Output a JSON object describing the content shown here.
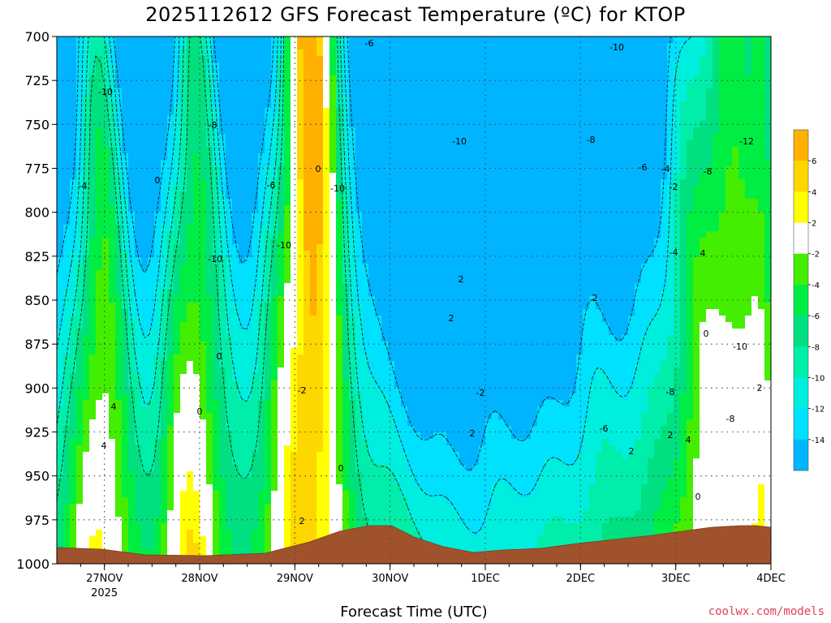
{
  "chart_data": {
    "type": "heatmap",
    "title": "2025112612 GFS Forecast Temperature (ºC) for KTOP",
    "xlabel": "Forecast Time (UTC)",
    "ylabel": "",
    "y_axis": {
      "ticks": [
        700,
        725,
        750,
        775,
        800,
        825,
        850,
        875,
        900,
        925,
        950,
        975,
        1000
      ],
      "range": [
        700,
        1000
      ],
      "inverted": true
    },
    "x_axis": {
      "ticks": [
        {
          "label": "27NOV",
          "sublabel": "2025",
          "time": "2025-11-27T00"
        },
        {
          "label": "28NOV",
          "sublabel": "",
          "time": "2025-11-28T00"
        },
        {
          "label": "29NOV",
          "sublabel": "",
          "time": "2025-11-29T00"
        },
        {
          "label": "30NOV",
          "sublabel": "",
          "time": "2025-11-30T00"
        },
        {
          "label": "1DEC",
          "sublabel": "",
          "time": "2025-12-01T00"
        },
        {
          "label": "2DEC",
          "sublabel": "",
          "time": "2025-12-02T00"
        },
        {
          "label": "3DEC",
          "sublabel": "",
          "time": "2025-12-03T00"
        },
        {
          "label": "4DEC",
          "sublabel": "",
          "time": "2025-12-04T00"
        }
      ],
      "range": [
        "2025-11-26T12",
        "2025-12-04T00"
      ]
    },
    "grid": true,
    "legend": {
      "placement": "right",
      "bins": [
        {
          "range": [
            6,
            8
          ],
          "color": "#ffb000"
        },
        {
          "range": [
            4,
            6
          ],
          "color": "#ffd700"
        },
        {
          "range": [
            2,
            4
          ],
          "color": "#ffff00"
        },
        {
          "range": [
            -2,
            2
          ],
          "color": "#ffffff"
        },
        {
          "range": [
            -4,
            -2
          ],
          "color": "#44ee00"
        },
        {
          "range": [
            -6,
            -4
          ],
          "color": "#00ee44"
        },
        {
          "range": [
            -8,
            -6
          ],
          "color": "#00e080"
        },
        {
          "range": [
            -10,
            -8
          ],
          "color": "#00eeaa"
        },
        {
          "range": [
            -12,
            -10
          ],
          "color": "#00eedd"
        },
        {
          "range": [
            -14,
            -12
          ],
          "color": "#00e0ff"
        },
        {
          "range": [
            -16,
            -14
          ],
          "color": "#00b4ff"
        }
      ],
      "tick_labels": [
        "6",
        "4",
        "2",
        "-2",
        "-4",
        "-6",
        "-8",
        "-10",
        "-12",
        "-14"
      ]
    },
    "contour_labels": [
      "-6",
      "-10",
      "-10",
      "-8",
      "-10",
      "-8",
      "-4",
      "0",
      "0",
      "-10",
      "-12",
      "-8",
      "-6",
      "-4",
      "-2",
      "-6",
      "-10",
      "-10",
      "2",
      "2",
      "-4",
      "4",
      "2",
      "0",
      "-10",
      "0",
      "-2",
      "-2",
      "-8",
      "-8",
      "2",
      "0",
      "-6",
      "4",
      "2",
      "2",
      "0",
      "4",
      "2",
      "4",
      "0",
      "2"
    ],
    "terrain_color": "#a0522d"
  },
  "watermark": "coolwx.com/models"
}
